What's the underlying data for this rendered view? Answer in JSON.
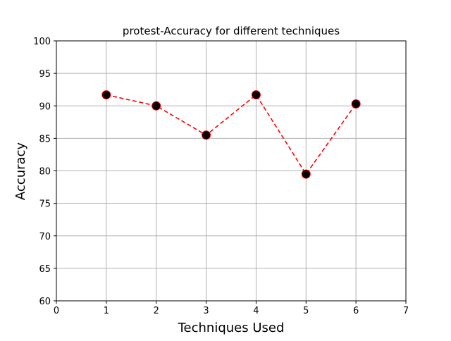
{
  "chart_data": {
    "type": "line",
    "title": "protest-Accuracy for different techniques",
    "xlabel": "Techniques Used",
    "ylabel": "Accuracy",
    "xlim": [
      0,
      7
    ],
    "ylim": [
      60,
      100
    ],
    "x_ticks": [
      0,
      1,
      2,
      3,
      4,
      5,
      6,
      7
    ],
    "y_ticks": [
      60,
      65,
      70,
      75,
      80,
      85,
      90,
      95,
      100
    ],
    "grid": true,
    "series": [
      {
        "x": [
          1,
          2,
          3,
          4,
          5,
          6
        ],
        "y": [
          91.7,
          90.0,
          85.5,
          91.7,
          79.5,
          90.3
        ],
        "line_color": "#ff0000",
        "line_style": "dashed",
        "marker_face_color": "#000000",
        "marker_edge_color": "#ff0000"
      }
    ]
  }
}
